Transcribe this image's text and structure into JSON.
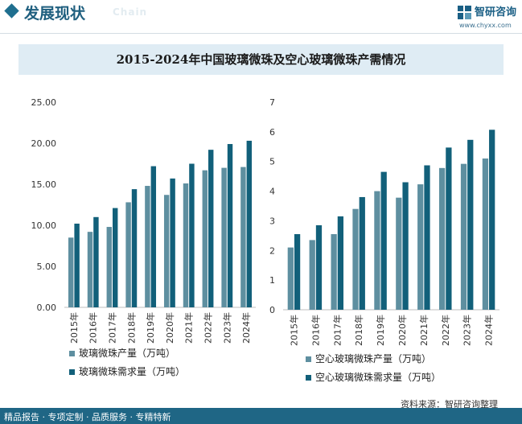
{
  "header": {
    "section_title": "发展现状",
    "section_title_en": "Chain",
    "logo_name": "智研咨询",
    "logo_url": "www.chyxx.com"
  },
  "title": "2015-2024年中国玻璃微珠及空心玻璃微珠产需情况",
  "colors": {
    "light": "#5e8fa0",
    "dark": "#12607a"
  },
  "chart_data": [
    {
      "type": "bar",
      "categories": [
        "2015年",
        "2016年",
        "2017年",
        "2018年",
        "2019年",
        "2020年",
        "2021年",
        "2022年",
        "2023年",
        "2024年"
      ],
      "series": [
        {
          "name": "玻璃微珠产量（万吨）",
          "values": [
            8.5,
            9.2,
            9.8,
            12.8,
            14.8,
            13.7,
            15.1,
            16.7,
            17.0,
            17.1
          ]
        },
        {
          "name": "玻璃微珠需求量（万吨）",
          "values": [
            10.2,
            11.0,
            12.1,
            14.4,
            17.2,
            15.7,
            17.5,
            19.2,
            19.9,
            20.3
          ]
        }
      ],
      "yticks": [
        "0.00",
        "5.00",
        "10.00",
        "15.00",
        "20.00",
        "25.00"
      ],
      "ylim": [
        0,
        25
      ],
      "legend": "bottom"
    },
    {
      "type": "bar",
      "categories": [
        "2015年",
        "2016年",
        "2017年",
        "2018年",
        "2019年",
        "2020年",
        "2021年",
        "2022年",
        "2023年",
        "2024年"
      ],
      "series": [
        {
          "name": "空心玻璃微珠产量（万吨）",
          "values": [
            2.1,
            2.35,
            2.55,
            3.4,
            4.0,
            3.78,
            4.23,
            4.78,
            4.92,
            5.1
          ]
        },
        {
          "name": "空心玻璃微珠需求量（万吨）",
          "values": [
            2.55,
            2.85,
            3.15,
            3.8,
            4.65,
            4.3,
            4.87,
            5.47,
            5.73,
            6.07
          ]
        }
      ],
      "yticks": [
        "0",
        "1",
        "2",
        "3",
        "4",
        "5",
        "6",
        "7"
      ],
      "ylim": [
        0,
        7
      ],
      "legend": "bottom"
    }
  ],
  "footer": {
    "left": "精品报告 · 专项定制 · 品质服务 · 专精特新",
    "source": "资料来源：智研咨询整理"
  }
}
